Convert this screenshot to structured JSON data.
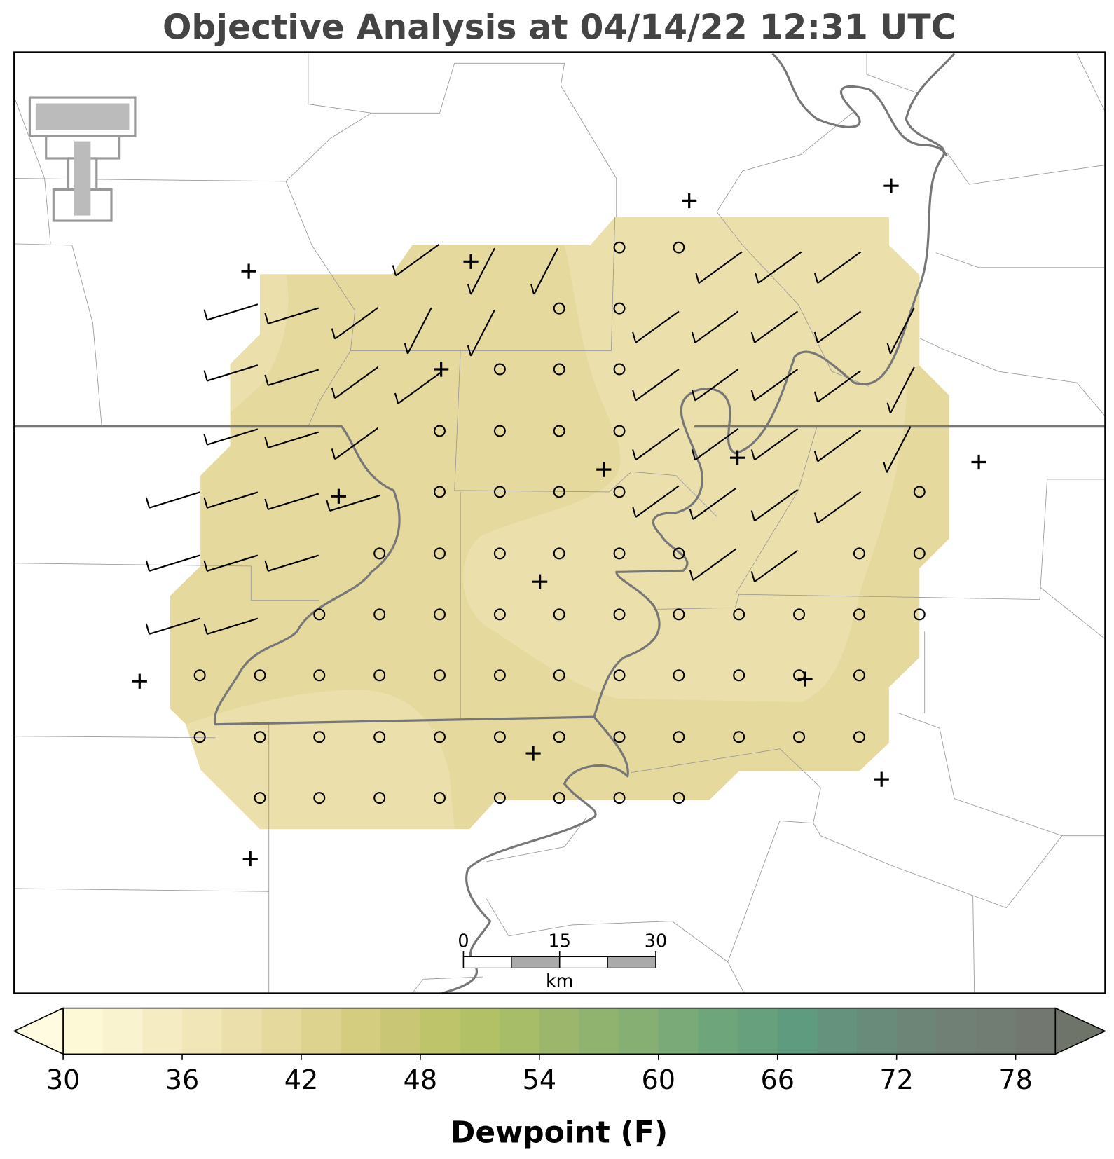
{
  "chart_data": {
    "type": "contourf",
    "title": "Objective Analysis at 04/14/22 12:31 UTC",
    "colorbar": {
      "label": "Dewpoint (F)",
      "range": [
        30,
        80
      ],
      "extend": "both",
      "ticks": [
        30,
        36,
        42,
        48,
        54,
        60,
        66,
        72,
        78
      ],
      "colors": [
        "#fdf8d6",
        "#faf3cf",
        "#f5ecc3",
        "#f0e6b8",
        "#ebe0ab",
        "#e6d99e",
        "#ddd38f",
        "#d4cd80",
        "#c9c775",
        "#bdc46a",
        "#b2c166",
        "#a8bd68",
        "#9cb66c",
        "#90b370",
        "#85af73",
        "#7aaa77",
        "#6fa57a",
        "#66a07d",
        "#5f9b7f",
        "#64927d",
        "#698b7a",
        "#6d8577",
        "#708075",
        "#717c72",
        "#727870"
      ],
      "under_color": "#fffbe0",
      "over_color": "#6f746b"
    }
  },
  "scale_bar": {
    "range": [
      0,
      30
    ],
    "ticks": [
      0,
      15,
      30
    ],
    "unit": "km"
  }
}
